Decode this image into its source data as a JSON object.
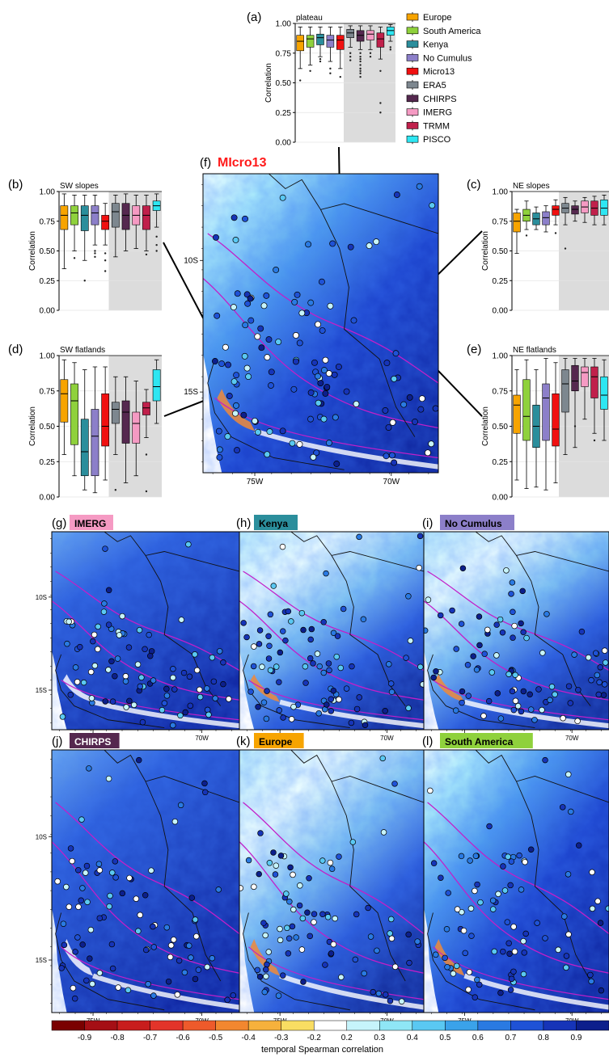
{
  "chart_data": {
    "type": "figure",
    "legend": {
      "entries": [
        {
          "name": "Europe",
          "color": "#f7a400"
        },
        {
          "name": "South America",
          "color": "#8fd13c"
        },
        {
          "name": "Kenya",
          "color": "#2b8e9c"
        },
        {
          "name": "No Cumulus",
          "color": "#8c7fc9"
        },
        {
          "name": "Micro13",
          "color": "#f01010"
        },
        {
          "name": "ERA5",
          "color": "#7d878f"
        },
        {
          "name": "CHIRPS",
          "color": "#55284f"
        },
        {
          "name": "IMERG",
          "color": "#f59ac3"
        },
        {
          "name": "TRMM",
          "color": "#c0204b"
        },
        {
          "name": "PISCO",
          "color": "#2ee6f2"
        }
      ]
    },
    "boxplots": [
      {
        "panel": "(a)",
        "title": "plateau",
        "ylabel": "Correlation",
        "yticks": [
          "0.00",
          "0.25",
          "0.50",
          "0.75",
          "1.00"
        ],
        "ylim": [
          0,
          1
        ],
        "boxes": [
          {
            "series": "Europe",
            "q1": 0.77,
            "med": 0.85,
            "q3": 0.9,
            "wlo": 0.62,
            "whi": 0.97,
            "out": [
              0.52
            ]
          },
          {
            "series": "South America",
            "q1": 0.8,
            "med": 0.87,
            "q3": 0.9,
            "wlo": 0.65,
            "whi": 0.97,
            "out": [
              0.6
            ]
          },
          {
            "series": "Kenya",
            "q1": 0.82,
            "med": 0.88,
            "q3": 0.91,
            "wlo": 0.72,
            "whi": 0.97,
            "out": [
              0.7,
              0.68
            ]
          },
          {
            "series": "No Cumulus",
            "q1": 0.8,
            "med": 0.86,
            "q3": 0.9,
            "wlo": 0.68,
            "whi": 0.97,
            "out": [
              0.62,
              0.58
            ]
          },
          {
            "series": "Micro13",
            "q1": 0.78,
            "med": 0.86,
            "q3": 0.9,
            "wlo": 0.62,
            "whi": 0.97,
            "out": [
              0.55
            ]
          },
          {
            "series": "ERA5",
            "q1": 0.88,
            "med": 0.92,
            "q3": 0.95,
            "wlo": 0.8,
            "whi": 0.98,
            "out": [
              0.75,
              0.72,
              0.69
            ]
          },
          {
            "series": "CHIRPS",
            "q1": 0.85,
            "med": 0.9,
            "q3": 0.94,
            "wlo": 0.78,
            "whi": 0.98,
            "out": [
              0.75,
              0.72,
              0.7,
              0.68,
              0.65,
              0.62,
              0.6,
              0.58,
              0.55
            ]
          },
          {
            "series": "IMERG",
            "q1": 0.86,
            "med": 0.91,
            "q3": 0.94,
            "wlo": 0.78,
            "whi": 0.98,
            "out": [
              0.75,
              0.72
            ]
          },
          {
            "series": "TRMM",
            "q1": 0.8,
            "med": 0.87,
            "q3": 0.92,
            "wlo": 0.7,
            "whi": 0.97,
            "out": [
              0.6,
              0.33,
              0.25
            ]
          },
          {
            "series": "PISCO",
            "q1": 0.9,
            "med": 0.94,
            "q3": 0.97,
            "wlo": 0.85,
            "whi": 0.99,
            "out": [
              0.8,
              0.78
            ]
          }
        ]
      },
      {
        "panel": "(b)",
        "title": "SW slopes",
        "ylabel": "Correlation",
        "yticks": [
          "0.00",
          "0.25",
          "0.50",
          "0.75",
          "1.00"
        ],
        "ylim": [
          0,
          1
        ],
        "boxes": [
          {
            "series": "Europe",
            "q1": 0.68,
            "med": 0.8,
            "q3": 0.88,
            "wlo": 0.35,
            "whi": 0.98,
            "out": []
          },
          {
            "series": "South America",
            "q1": 0.72,
            "med": 0.82,
            "q3": 0.88,
            "wlo": 0.5,
            "whi": 0.97,
            "out": [
              0.44
            ]
          },
          {
            "series": "Kenya",
            "q1": 0.67,
            "med": 0.8,
            "q3": 0.88,
            "wlo": 0.42,
            "whi": 0.97,
            "out": [
              0.25
            ]
          },
          {
            "series": "No Cumulus",
            "q1": 0.72,
            "med": 0.82,
            "q3": 0.88,
            "wlo": 0.55,
            "whi": 0.97,
            "out": [
              0.5,
              0.48,
              0.45
            ]
          },
          {
            "series": "Micro13",
            "q1": 0.68,
            "med": 0.75,
            "q3": 0.8,
            "wlo": 0.55,
            "whi": 0.9,
            "out": [
              0.48,
              0.42,
              0.33
            ]
          },
          {
            "series": "ERA5",
            "q1": 0.7,
            "med": 0.83,
            "q3": 0.9,
            "wlo": 0.45,
            "whi": 0.97,
            "out": []
          },
          {
            "series": "CHIRPS",
            "q1": 0.68,
            "med": 0.8,
            "q3": 0.9,
            "wlo": 0.5,
            "whi": 0.98,
            "out": []
          },
          {
            "series": "IMERG",
            "q1": 0.72,
            "med": 0.8,
            "q3": 0.88,
            "wlo": 0.52,
            "whi": 0.97,
            "out": []
          },
          {
            "series": "TRMM",
            "q1": 0.68,
            "med": 0.8,
            "q3": 0.88,
            "wlo": 0.5,
            "whi": 0.97,
            "out": [
              0.47
            ]
          },
          {
            "series": "PISCO",
            "q1": 0.84,
            "med": 0.88,
            "q3": 0.92,
            "wlo": 0.7,
            "whi": 0.98,
            "out": [
              0.62,
              0.55,
              0.5
            ]
          }
        ]
      },
      {
        "panel": "(c)",
        "title": "NE slopes",
        "ylabel": "Correlation",
        "yticks": [
          "0.00",
          "0.25",
          "0.50",
          "0.75",
          "1.00"
        ],
        "ylim": [
          0,
          1
        ],
        "boxes": [
          {
            "series": "Europe",
            "q1": 0.66,
            "med": 0.75,
            "q3": 0.82,
            "wlo": 0.48,
            "whi": 0.85,
            "out": []
          },
          {
            "series": "South America",
            "q1": 0.75,
            "med": 0.8,
            "q3": 0.85,
            "wlo": 0.68,
            "whi": 0.92,
            "out": [
              0.63
            ]
          },
          {
            "series": "Kenya",
            "q1": 0.72,
            "med": 0.77,
            "q3": 0.82,
            "wlo": 0.68,
            "whi": 0.87,
            "out": []
          },
          {
            "series": "No Cumulus",
            "q1": 0.72,
            "med": 0.78,
            "q3": 0.83,
            "wlo": 0.66,
            "whi": 0.88,
            "out": []
          },
          {
            "series": "Micro13",
            "q1": 0.8,
            "med": 0.85,
            "q3": 0.88,
            "wlo": 0.72,
            "whi": 0.93,
            "out": [
              0.65
            ]
          },
          {
            "series": "ERA5",
            "q1": 0.82,
            "med": 0.86,
            "q3": 0.9,
            "wlo": 0.72,
            "whi": 0.95,
            "out": [
              0.52
            ]
          },
          {
            "series": "CHIRPS",
            "q1": 0.81,
            "med": 0.85,
            "q3": 0.88,
            "wlo": 0.75,
            "whi": 0.92,
            "out": []
          },
          {
            "series": "IMERG",
            "q1": 0.82,
            "med": 0.87,
            "q3": 0.92,
            "wlo": 0.74,
            "whi": 0.95,
            "out": []
          },
          {
            "series": "TRMM",
            "q1": 0.8,
            "med": 0.86,
            "q3": 0.92,
            "wlo": 0.72,
            "whi": 0.96,
            "out": []
          },
          {
            "series": "PISCO",
            "q1": 0.8,
            "med": 0.86,
            "q3": 0.93,
            "wlo": 0.72,
            "whi": 0.97,
            "out": []
          }
        ]
      },
      {
        "panel": "(d)",
        "title": "SW flatlands",
        "ylabel": "Correlation",
        "yticks": [
          "0.00",
          "0.25",
          "0.50",
          "0.75",
          "1.00"
        ],
        "ylim": [
          0,
          1
        ],
        "boxes": [
          {
            "series": "Europe",
            "q1": 0.53,
            "med": 0.73,
            "q3": 0.83,
            "wlo": 0.3,
            "whi": 0.97,
            "out": []
          },
          {
            "series": "South America",
            "q1": 0.37,
            "med": 0.68,
            "q3": 0.8,
            "wlo": 0.15,
            "whi": 0.95,
            "out": []
          },
          {
            "series": "Kenya",
            "q1": 0.15,
            "med": 0.32,
            "q3": 0.55,
            "wlo": 0.05,
            "whi": 0.9,
            "out": []
          },
          {
            "series": "No Cumulus",
            "q1": 0.15,
            "med": 0.43,
            "q3": 0.62,
            "wlo": 0.03,
            "whi": 0.92,
            "out": []
          },
          {
            "series": "Micro13",
            "q1": 0.36,
            "med": 0.5,
            "q3": 0.73,
            "wlo": 0.12,
            "whi": 0.92,
            "out": []
          },
          {
            "series": "ERA5",
            "q1": 0.52,
            "med": 0.62,
            "q3": 0.67,
            "wlo": 0.3,
            "whi": 0.85,
            "out": [
              0.05
            ]
          },
          {
            "series": "CHIRPS",
            "q1": 0.38,
            "med": 0.6,
            "q3": 0.68,
            "wlo": 0.1,
            "whi": 0.85,
            "out": []
          },
          {
            "series": "IMERG",
            "q1": 0.38,
            "med": 0.52,
            "q3": 0.6,
            "wlo": 0.15,
            "whi": 0.82,
            "out": []
          },
          {
            "series": "TRMM",
            "q1": 0.58,
            "med": 0.63,
            "q3": 0.67,
            "wlo": 0.42,
            "whi": 0.76,
            "out": [
              0.3,
              0.04
            ]
          },
          {
            "series": "PISCO",
            "q1": 0.68,
            "med": 0.78,
            "q3": 0.9,
            "wlo": 0.52,
            "whi": 0.97,
            "out": []
          }
        ]
      },
      {
        "panel": "(e)",
        "title": "NE flatlands",
        "ylabel": "Correlation",
        "yticks": [
          "0.00",
          "0.25",
          "0.50",
          "0.75",
          "1.00"
        ],
        "ylim": [
          0,
          1
        ],
        "boxes": [
          {
            "series": "Europe",
            "q1": 0.45,
            "med": 0.65,
            "q3": 0.72,
            "wlo": 0.12,
            "whi": 0.9,
            "out": []
          },
          {
            "series": "South America",
            "q1": 0.4,
            "med": 0.57,
            "q3": 0.83,
            "wlo": 0.06,
            "whi": 0.97,
            "out": []
          },
          {
            "series": "Kenya",
            "q1": 0.35,
            "med": 0.5,
            "q3": 0.65,
            "wlo": 0.07,
            "whi": 0.9,
            "out": []
          },
          {
            "series": "No Cumulus",
            "q1": 0.4,
            "med": 0.7,
            "q3": 0.8,
            "wlo": 0.05,
            "whi": 0.98,
            "out": []
          },
          {
            "series": "Micro13",
            "q1": 0.36,
            "med": 0.48,
            "q3": 0.73,
            "wlo": 0.1,
            "whi": 0.95,
            "out": []
          },
          {
            "series": "ERA5",
            "q1": 0.6,
            "med": 0.8,
            "q3": 0.9,
            "wlo": 0.3,
            "whi": 0.98,
            "out": []
          },
          {
            "series": "CHIRPS",
            "q1": 0.75,
            "med": 0.82,
            "q3": 0.93,
            "wlo": 0.35,
            "whi": 0.98,
            "out": [
              0.5
            ]
          },
          {
            "series": "IMERG",
            "q1": 0.78,
            "med": 0.88,
            "q3": 0.92,
            "wlo": 0.55,
            "whi": 0.98,
            "out": []
          },
          {
            "series": "TRMM",
            "q1": 0.7,
            "med": 0.85,
            "q3": 0.92,
            "wlo": 0.45,
            "whi": 0.98,
            "out": [
              0.4
            ]
          },
          {
            "series": "PISCO",
            "q1": 0.62,
            "med": 0.72,
            "q3": 0.85,
            "wlo": 0.4,
            "whi": 0.97,
            "out": []
          }
        ]
      }
    ],
    "maps": [
      {
        "panel": "(f)",
        "label": "MIcro13",
        "label_color": "#ff1a1a",
        "label_bg": "",
        "xticks": [
          "75W",
          "70W"
        ],
        "yticks": [
          "10S",
          "15S"
        ]
      },
      {
        "panel": "(g)",
        "label": "IMERG",
        "label_color": "#000000",
        "label_bg": "#f59ac3",
        "xticks": [
          "75W",
          "70W"
        ],
        "yticks": [
          "10S",
          "15S"
        ]
      },
      {
        "panel": "(h)",
        "label": "Kenya",
        "label_color": "#000000",
        "label_bg": "#2b8e9c",
        "xticks": [
          "75W",
          "70W"
        ],
        "yticks": []
      },
      {
        "panel": "(i)",
        "label": "No Cumulus",
        "label_color": "#000000",
        "label_bg": "#8c7fc9",
        "xticks": [
          "75W",
          "70W"
        ],
        "yticks": []
      },
      {
        "panel": "(j)",
        "label": "CHIRPS",
        "label_color": "#ffffff",
        "label_bg": "#55284f",
        "xticks": [
          "75W",
          "70W"
        ],
        "yticks": [
          "10S",
          "15S"
        ]
      },
      {
        "panel": "(k)",
        "label": "Europe",
        "label_color": "#000000",
        "label_bg": "#f7a400",
        "xticks": [
          "75W",
          "70W"
        ],
        "yticks": []
      },
      {
        "panel": "(l)",
        "label": "South America",
        "label_color": "#000000",
        "label_bg": "#8fd13c",
        "xticks": [
          "75W",
          "70W"
        ],
        "yticks": []
      }
    ],
    "colorbar": {
      "title": "temporal Spearman correlation",
      "levels": [
        "-0.9",
        "-0.8",
        "-0.7",
        "-0.6",
        "-0.5",
        "-0.4",
        "-0.3",
        "-0.2",
        "0.2",
        "0.3",
        "0.4",
        "0.5",
        "0.6",
        "0.7",
        "0.8",
        "0.9"
      ],
      "colors": [
        "#7a0000",
        "#a50f15",
        "#c81d1d",
        "#e3342a",
        "#ee5a2b",
        "#f2872f",
        "#f6b13c",
        "#f9dd62",
        "#ffffff",
        "#c6f4fb",
        "#8fe6f6",
        "#5ac8f2",
        "#3aa2ea",
        "#2a7ae2",
        "#1f52d6",
        "#1634b8",
        "#0c1f8c"
      ]
    }
  }
}
